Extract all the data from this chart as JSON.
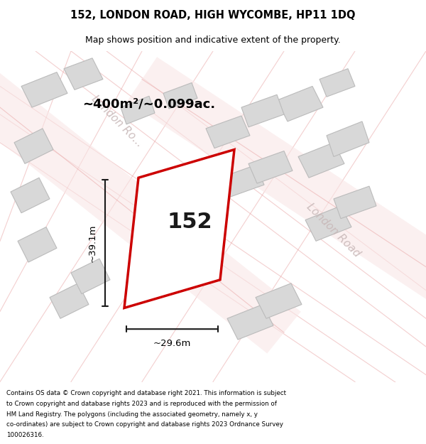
{
  "title": "152, LONDON ROAD, HIGH WYCOMBE, HP11 1DQ",
  "subtitle": "Map shows position and indicative extent of the property.",
  "footer_lines": [
    "Contains OS data © Crown copyright and database right 2021. This information is subject",
    "to Crown copyright and database rights 2023 and is reproduced with the permission of",
    "HM Land Registry. The polygons (including the associated geometry, namely x, y",
    "co-ordinates) are subject to Crown copyright and database rights 2023 Ordnance Survey",
    "100026316."
  ],
  "area_label": "~400m²/~0.099ac.",
  "plot_number": "152",
  "dim_width": "~29.6m",
  "dim_height": "~39.1m",
  "road_label_1": "London Ro...",
  "road_label_2": "London Road",
  "map_bg": "#f5f0f0",
  "plot_fill": "#ffffff",
  "plot_edge": "#cc0000",
  "building_fill": "#d8d8d8",
  "building_edge": "#bbbbbb",
  "road_line_color": "#e8a0a0",
  "dim_line_color": "#1a1a1a"
}
